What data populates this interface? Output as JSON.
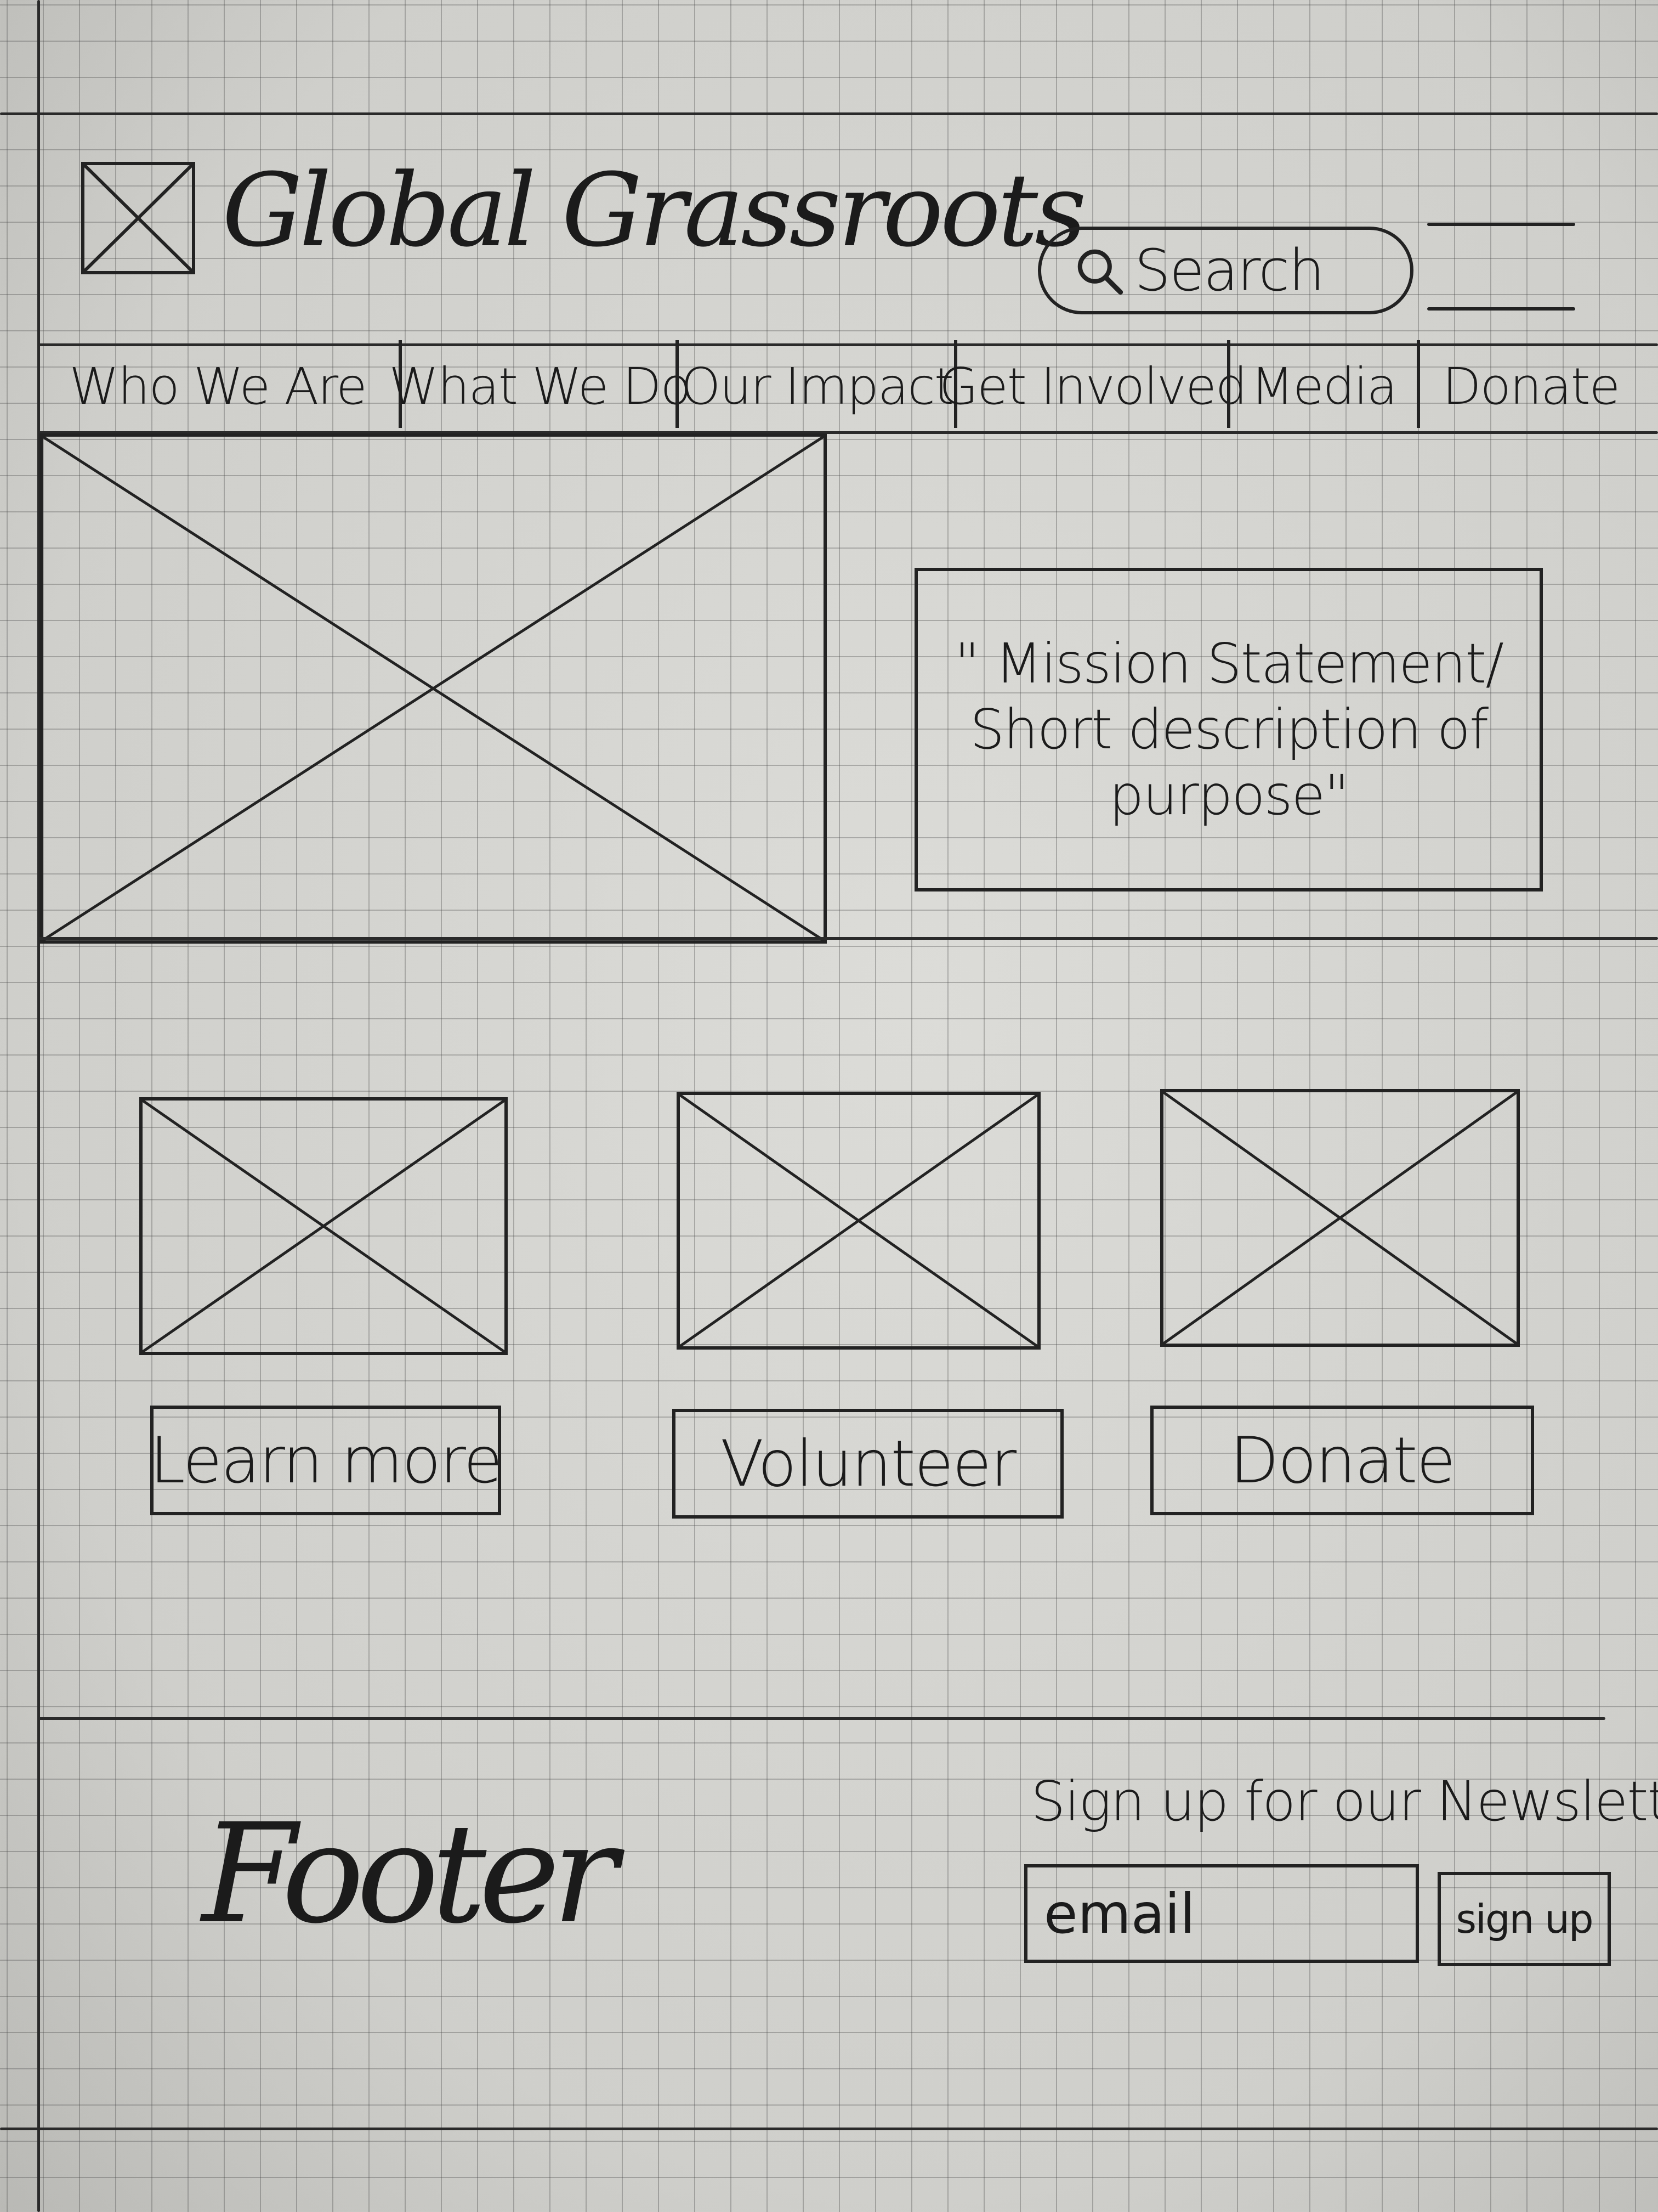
{
  "header": {
    "logo_icon": "image-placeholder-icon",
    "site_title": "Global Grassroots",
    "search": {
      "label": "Search",
      "icon": "search-icon"
    },
    "menu_icon": "hamburger-menu-icon"
  },
  "nav": {
    "items": [
      {
        "label": "Who We Are"
      },
      {
        "label": "What We Do"
      },
      {
        "label": "Our Impact"
      },
      {
        "label": "Get Involved"
      },
      {
        "label": "Media"
      },
      {
        "label": "Donate"
      }
    ]
  },
  "hero": {
    "image_icon": "image-placeholder-icon",
    "mission_lines": [
      "\" Mission Statement/",
      "Short description of",
      "purpose\""
    ]
  },
  "cards": [
    {
      "image_icon": "image-placeholder-icon",
      "button_label": "Learn more"
    },
    {
      "image_icon": "image-placeholder-icon",
      "button_label": "Volunteer"
    },
    {
      "image_icon": "image-placeholder-icon",
      "button_label": "Donate"
    }
  ],
  "footer": {
    "label": "Footer",
    "newsletter": {
      "heading": "Sign up for our Newsletter",
      "email_placeholder": "email",
      "button_label": "sign up"
    }
  }
}
